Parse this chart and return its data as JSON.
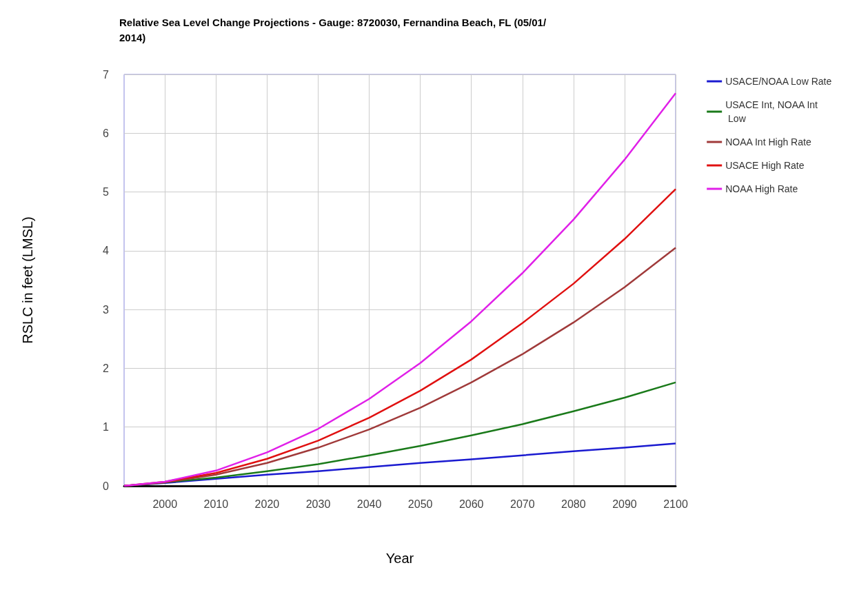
{
  "chart_data": {
    "type": "line",
    "title": "Relative Sea Level Change Projections - Gauge: 8720030, Fernandina Beach, FL (05/01/2014)",
    "xlabel": "Year",
    "ylabel": "RSLC in feet (LMSL)",
    "x": [
      1992,
      2000,
      2010,
      2020,
      2030,
      2040,
      2050,
      2060,
      2070,
      2080,
      2090,
      2100
    ],
    "series": [
      {
        "name": "USACE/NOAA Low Rate",
        "color": "#1a1ad0",
        "values": [
          0,
          0.05,
          0.12,
          0.19,
          0.25,
          0.32,
          0.39,
          0.45,
          0.52,
          0.59,
          0.65,
          0.72
        ]
      },
      {
        "name": "USACE Int, NOAA Int Low",
        "color": "#1a7a1a",
        "values": [
          0,
          0.06,
          0.14,
          0.25,
          0.37,
          0.52,
          0.68,
          0.86,
          1.05,
          1.27,
          1.5,
          1.76
        ]
      },
      {
        "name": "NOAA Int High Rate",
        "color": "#a03a3a",
        "values": [
          0,
          0.06,
          0.19,
          0.39,
          0.65,
          0.96,
          1.33,
          1.76,
          2.24,
          2.78,
          3.38,
          4.05
        ]
      },
      {
        "name": "USACE High Rate",
        "color": "#e01010",
        "values": [
          0,
          0.07,
          0.22,
          0.46,
          0.77,
          1.16,
          1.62,
          2.15,
          2.77,
          3.44,
          4.2,
          5.05
        ]
      },
      {
        "name": "NOAA High Rate",
        "color": "#e020e8",
        "values": [
          0,
          0.07,
          0.26,
          0.57,
          0.97,
          1.48,
          2.09,
          2.8,
          3.62,
          4.53,
          5.55,
          6.68
        ]
      }
    ],
    "xlim": [
      1992,
      2100
    ],
    "xticks": [
      2000,
      2010,
      2020,
      2030,
      2040,
      2050,
      2060,
      2070,
      2080,
      2090,
      2100
    ],
    "ylim": [
      0,
      7
    ],
    "yticks": [
      0,
      1,
      2,
      3,
      4,
      5,
      6,
      7
    ],
    "grid": true,
    "legend": "right",
    "marker": "none",
    "line_style": "solid"
  }
}
